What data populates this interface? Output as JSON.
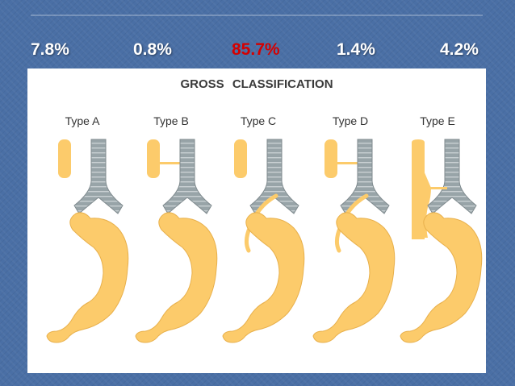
{
  "percentages": [
    {
      "value": "7.8%",
      "highlight": false
    },
    {
      "value": "0.8%",
      "highlight": false
    },
    {
      "value": "85.7%",
      "highlight": true
    },
    {
      "value": "1.4%",
      "highlight": false
    },
    {
      "value": "4.2%",
      "highlight": false
    }
  ],
  "diagram": {
    "title": "GROSS CLASSIFICATION",
    "types": [
      "Type A",
      "Type B",
      "Type C",
      "Type D",
      "Type E"
    ]
  },
  "colors": {
    "background": "#4a6fa5",
    "highlight": "#d40000",
    "esophagus_stomach": "#fccb6b",
    "trachea": "#98a4a8"
  }
}
